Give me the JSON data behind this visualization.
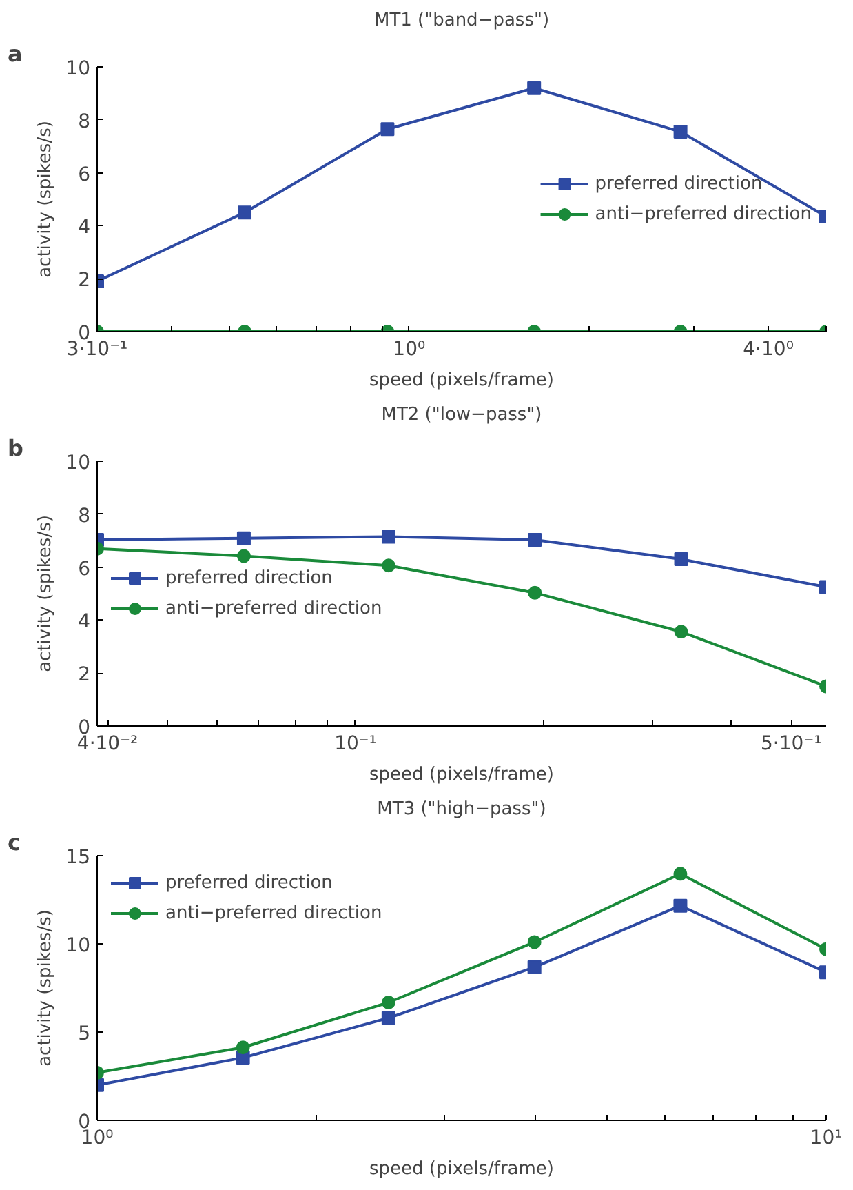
{
  "chart_data": [
    {
      "type": "line",
      "title": "MT1 (\"band−pass\")",
      "xlabel": "speed (pixels/frame)",
      "ylabel": "activity (spikes/s)",
      "annotations": [
        "a"
      ],
      "log": "x",
      "grid": false,
      "legend": "right",
      "x": [
        0.3,
        0.53,
        0.92,
        1.62,
        2.85,
        5.0
      ],
      "series": [
        {
          "name": "preferred direction",
          "color": "#2e4aa3",
          "marker": "square",
          "values": [
            1.9,
            4.5,
            7.65,
            9.2,
            7.55,
            4.35
          ]
        },
        {
          "name": "anti−preferred direction",
          "color": "#1a8a3a",
          "marker": "circle",
          "values": [
            0,
            0,
            0,
            0,
            0,
            0
          ]
        }
      ],
      "xlim": [
        0.3,
        5.0
      ],
      "ylim": [
        0,
        10
      ],
      "xticks": [
        {
          "value": 0.3,
          "label": "3·10⁻¹"
        },
        {
          "value": 0.4,
          "label": null
        },
        {
          "value": 0.5,
          "label": null
        },
        {
          "value": 0.6,
          "label": null
        },
        {
          "value": 0.7,
          "label": null
        },
        {
          "value": 0.8,
          "label": null
        },
        {
          "value": 0.9,
          "label": null
        },
        {
          "value": 1,
          "label": "10⁰"
        },
        {
          "value": 2,
          "label": null
        },
        {
          "value": 3,
          "label": null
        },
        {
          "value": 4,
          "label": "4·10⁰"
        },
        {
          "value": 5,
          "label": null
        }
      ],
      "yticks": [
        0,
        2,
        4,
        6,
        8,
        10
      ]
    },
    {
      "type": "line",
      "title": "MT2 (\"low−pass\")",
      "xlabel": "speed (pixels/frame)",
      "ylabel": "activity (spikes/s)",
      "annotations": [
        "b"
      ],
      "log": "x",
      "grid": false,
      "legend": "left",
      "x": [
        0.0385,
        0.0662,
        0.113,
        0.194,
        0.333,
        0.569
      ],
      "series": [
        {
          "name": "preferred direction",
          "color": "#2e4aa3",
          "marker": "square",
          "values": [
            7.03,
            7.09,
            7.15,
            7.03,
            6.3,
            5.25
          ]
        },
        {
          "name": "anti−preferred direction",
          "color": "#1a8a3a",
          "marker": "circle",
          "values": [
            6.7,
            6.42,
            6.06,
            5.03,
            3.56,
            1.5
          ]
        }
      ],
      "xlim": [
        0.0385,
        0.569
      ],
      "ylim": [
        0,
        10
      ],
      "xticks": [
        {
          "value": 0.04,
          "label": "4·10⁻²"
        },
        {
          "value": 0.05,
          "label": null
        },
        {
          "value": 0.06,
          "label": null
        },
        {
          "value": 0.07,
          "label": null
        },
        {
          "value": 0.08,
          "label": null
        },
        {
          "value": 0.09,
          "label": null
        },
        {
          "value": 0.1,
          "label": "10⁻¹"
        },
        {
          "value": 0.2,
          "label": null
        },
        {
          "value": 0.3,
          "label": null
        },
        {
          "value": 0.4,
          "label": null
        },
        {
          "value": 0.5,
          "label": "5·10⁻¹"
        }
      ],
      "yticks": [
        0,
        2,
        4,
        6,
        8,
        10
      ]
    },
    {
      "type": "line",
      "title": "MT3 (\"high−pass\")",
      "xlabel": "speed (pixels/frame)",
      "ylabel": "activity (spikes/s)",
      "annotations": [
        "c"
      ],
      "log": "x",
      "grid": false,
      "legend": "top left",
      "x": [
        1,
        1.585,
        2.51,
        3.98,
        6.31,
        10
      ],
      "series": [
        {
          "name": "preferred direction",
          "color": "#2e4aa3",
          "marker": "square",
          "values": [
            2.0,
            3.55,
            5.8,
            8.68,
            12.16,
            8.39
          ]
        },
        {
          "name": "anti−preferred direction",
          "color": "#1a8a3a",
          "marker": "circle",
          "values": [
            2.7,
            4.13,
            6.68,
            10.1,
            13.97,
            9.7
          ]
        }
      ],
      "xlim": [
        1,
        10
      ],
      "ylim": [
        0,
        15
      ],
      "xticks": [
        {
          "value": 1,
          "label": "10⁰"
        },
        {
          "value": 2,
          "label": null
        },
        {
          "value": 3,
          "label": null
        },
        {
          "value": 4,
          "label": null
        },
        {
          "value": 5,
          "label": null
        },
        {
          "value": 6,
          "label": null
        },
        {
          "value": 7,
          "label": null
        },
        {
          "value": 8,
          "label": null
        },
        {
          "value": 9,
          "label": null
        },
        {
          "value": 10,
          "label": "10¹"
        }
      ],
      "yticks": [
        0,
        5,
        10,
        15
      ]
    }
  ]
}
